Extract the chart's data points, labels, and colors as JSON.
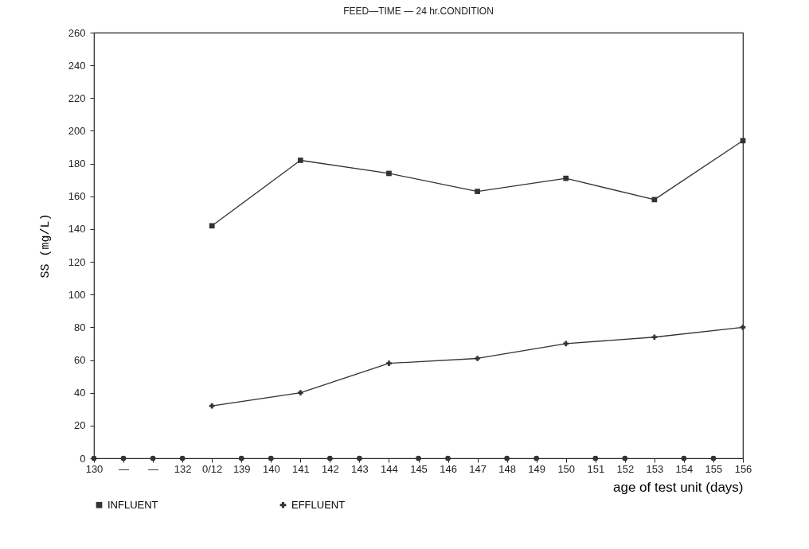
{
  "chart_data": {
    "type": "line",
    "title": "FEED—TIME — 24 hr.CONDITION",
    "xlabel": "age of test unit (days)",
    "ylabel": "SS (mg/L)",
    "categories": [
      "130",
      "—",
      "—",
      "132",
      "0/12",
      "139",
      "140",
      "141",
      "142",
      "143",
      "144",
      "145",
      "146",
      "147",
      "148",
      "149",
      "150",
      "151",
      "152",
      "153",
      "154",
      "155",
      "156"
    ],
    "ylim": [
      0,
      260
    ],
    "yticks": [
      0,
      20,
      40,
      60,
      80,
      100,
      120,
      140,
      160,
      180,
      200,
      220,
      240,
      260
    ],
    "legend": "bottom",
    "series": [
      {
        "name": "INFLUENT",
        "color": "#333333",
        "marker": "square",
        "values": [
          null,
          null,
          null,
          null,
          142,
          null,
          null,
          182,
          null,
          null,
          174,
          null,
          null,
          163,
          null,
          null,
          171,
          null,
          null,
          158,
          null,
          null,
          194
        ]
      },
      {
        "name": "EFFLUENT",
        "color": "#333333",
        "marker": "cross",
        "values": [
          null,
          null,
          null,
          null,
          32,
          null,
          null,
          40,
          null,
          null,
          58,
          null,
          null,
          61,
          null,
          null,
          70,
          null,
          null,
          74,
          null,
          null,
          80
        ]
      },
      {
        "type": "scatter",
        "color": "#333333",
        "marker": "square",
        "values": [
          0,
          0,
          0,
          0,
          null,
          0,
          0,
          null,
          0,
          0,
          null,
          0,
          0,
          null,
          0,
          0,
          null,
          0,
          0,
          null,
          0,
          0,
          null
        ]
      }
    ]
  }
}
